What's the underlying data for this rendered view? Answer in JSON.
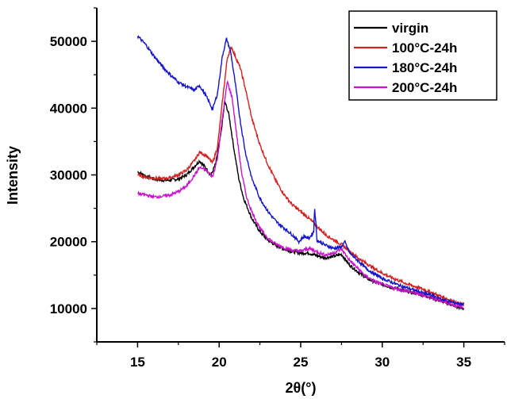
{
  "chart_data": {
    "type": "line",
    "title": "",
    "xlabel": "2θ(°)",
    "ylabel": "Intensity",
    "xlim": [
      12.5,
      37.5
    ],
    "ylim": [
      5000,
      55000
    ],
    "x_ticks": [
      15,
      20,
      25,
      30,
      35
    ],
    "y_ticks": [
      10000,
      20000,
      30000,
      40000,
      50000
    ],
    "grid": false,
    "legend_position": "top-right",
    "series": [
      {
        "name": "virgin",
        "color": "#000000",
        "points": [
          [
            15,
            30500
          ],
          [
            15.5,
            29800
          ],
          [
            16,
            29400
          ],
          [
            16.5,
            29200
          ],
          [
            17,
            29200
          ],
          [
            17.5,
            29400
          ],
          [
            18,
            30000
          ],
          [
            18.5,
            31300
          ],
          [
            18.8,
            32100
          ],
          [
            19.2,
            31000
          ],
          [
            19.5,
            29900
          ],
          [
            19.8,
            31800
          ],
          [
            20.1,
            36000
          ],
          [
            20.35,
            41000
          ],
          [
            20.6,
            39000
          ],
          [
            20.9,
            34000
          ],
          [
            21.2,
            29500
          ],
          [
            21.5,
            26500
          ],
          [
            22,
            23500
          ],
          [
            22.5,
            21500
          ],
          [
            23,
            20200
          ],
          [
            23.5,
            19400
          ],
          [
            24,
            18900
          ],
          [
            24.5,
            18500
          ],
          [
            25,
            18300
          ],
          [
            25.5,
            18300
          ],
          [
            26,
            17900
          ],
          [
            26.5,
            17600
          ],
          [
            27,
            17800
          ],
          [
            27.5,
            18100
          ],
          [
            28,
            16500
          ],
          [
            28.5,
            15500
          ],
          [
            29,
            14600
          ],
          [
            29.5,
            14000
          ],
          [
            30,
            13600
          ],
          [
            30.5,
            13200
          ],
          [
            31,
            12900
          ],
          [
            31.5,
            12600
          ],
          [
            32,
            12300
          ],
          [
            32.5,
            12000
          ],
          [
            33,
            11600
          ],
          [
            33.5,
            11200
          ],
          [
            34,
            10800
          ],
          [
            34.5,
            10300
          ],
          [
            35,
            10000
          ]
        ]
      },
      {
        "name": "100°C-24h",
        "color": "#d42020",
        "points": [
          [
            15,
            30000
          ],
          [
            15.5,
            29700
          ],
          [
            16,
            29500
          ],
          [
            16.5,
            29400
          ],
          [
            17,
            29600
          ],
          [
            17.5,
            30000
          ],
          [
            18,
            30700
          ],
          [
            18.5,
            32200
          ],
          [
            18.8,
            33400
          ],
          [
            19.2,
            32900
          ],
          [
            19.6,
            31800
          ],
          [
            19.9,
            34200
          ],
          [
            20.2,
            41000
          ],
          [
            20.5,
            47500
          ],
          [
            20.75,
            49200
          ],
          [
            21,
            47700
          ],
          [
            21.3,
            46000
          ],
          [
            21.6,
            43000
          ],
          [
            22,
            38500
          ],
          [
            22.5,
            34500
          ],
          [
            23,
            31500
          ],
          [
            23.5,
            29000
          ],
          [
            24,
            27000
          ],
          [
            24.5,
            25500
          ],
          [
            25,
            24500
          ],
          [
            25.5,
            23500
          ],
          [
            26,
            22300
          ],
          [
            26.5,
            21100
          ],
          [
            27,
            20300
          ],
          [
            27.5,
            19600
          ],
          [
            28,
            18600
          ],
          [
            28.5,
            17600
          ],
          [
            29,
            16800
          ],
          [
            29.5,
            16000
          ],
          [
            30,
            15300
          ],
          [
            30.5,
            14700
          ],
          [
            31,
            14200
          ],
          [
            31.5,
            13700
          ],
          [
            32,
            13300
          ],
          [
            32.5,
            12900
          ],
          [
            33,
            12400
          ],
          [
            33.5,
            11900
          ],
          [
            34,
            11400
          ],
          [
            34.5,
            10900
          ],
          [
            35,
            10500
          ]
        ]
      },
      {
        "name": "180°C-24h",
        "color": "#1414c8",
        "points": [
          [
            15,
            50800
          ],
          [
            15.5,
            49500
          ],
          [
            16,
            47800
          ],
          [
            16.5,
            46300
          ],
          [
            17,
            45000
          ],
          [
            17.5,
            43900
          ],
          [
            18,
            43200
          ],
          [
            18.5,
            42700
          ],
          [
            18.8,
            43400
          ],
          [
            19.2,
            41800
          ],
          [
            19.6,
            39800
          ],
          [
            19.9,
            42200
          ],
          [
            20.2,
            47800
          ],
          [
            20.45,
            50400
          ],
          [
            20.7,
            48500
          ],
          [
            21,
            43500
          ],
          [
            21.3,
            38000
          ],
          [
            21.6,
            33500
          ],
          [
            22,
            29500
          ],
          [
            22.5,
            26500
          ],
          [
            23,
            24500
          ],
          [
            23.5,
            23000
          ],
          [
            24,
            22000
          ],
          [
            24.5,
            21000
          ],
          [
            24.9,
            20000
          ],
          [
            25.2,
            20800
          ],
          [
            25.5,
            20500
          ],
          [
            25.8,
            21500
          ],
          [
            25.85,
            25300
          ],
          [
            26,
            20200
          ],
          [
            26.5,
            19500
          ],
          [
            27,
            19000
          ],
          [
            27.5,
            19200
          ],
          [
            27.7,
            20000
          ],
          [
            28,
            18300
          ],
          [
            28.5,
            17200
          ],
          [
            29,
            16000
          ],
          [
            29.5,
            15200
          ],
          [
            30,
            14500
          ],
          [
            30.5,
            14000
          ],
          [
            31,
            13500
          ],
          [
            31.5,
            13100
          ],
          [
            32,
            12700
          ],
          [
            32.5,
            12300
          ],
          [
            33,
            12000
          ],
          [
            33.5,
            11500
          ],
          [
            34,
            11100
          ],
          [
            34.5,
            10800
          ],
          [
            35,
            10600
          ]
        ]
      },
      {
        "name": "200°C-24h",
        "color": "#c814c8",
        "points": [
          [
            15,
            27200
          ],
          [
            15.5,
            27000
          ],
          [
            16,
            26700
          ],
          [
            16.5,
            26800
          ],
          [
            17,
            27000
          ],
          [
            17.5,
            27500
          ],
          [
            18,
            28300
          ],
          [
            18.5,
            30000
          ],
          [
            18.8,
            31100
          ],
          [
            19.2,
            30700
          ],
          [
            19.6,
            29700
          ],
          [
            19.9,
            32500
          ],
          [
            20.2,
            38500
          ],
          [
            20.5,
            44000
          ],
          [
            20.8,
            41500
          ],
          [
            21.1,
            35500
          ],
          [
            21.4,
            30000
          ],
          [
            21.7,
            26500
          ],
          [
            22,
            24500
          ],
          [
            22.5,
            22000
          ],
          [
            23,
            20500
          ],
          [
            23.5,
            19600
          ],
          [
            24,
            19100
          ],
          [
            24.5,
            18700
          ],
          [
            25,
            18600
          ],
          [
            25.5,
            19000
          ],
          [
            26,
            18500
          ],
          [
            26.5,
            18000
          ],
          [
            27,
            18300
          ],
          [
            27.5,
            18900
          ],
          [
            28,
            17200
          ],
          [
            28.5,
            16000
          ],
          [
            29,
            14800
          ],
          [
            29.5,
            14100
          ],
          [
            30,
            13600
          ],
          [
            30.5,
            13200
          ],
          [
            31,
            12900
          ],
          [
            31.5,
            12600
          ],
          [
            32,
            12300
          ],
          [
            32.5,
            12000
          ],
          [
            33,
            11600
          ],
          [
            33.5,
            11200
          ],
          [
            34,
            10800
          ],
          [
            34.5,
            10400
          ],
          [
            35,
            10100
          ]
        ]
      }
    ]
  }
}
